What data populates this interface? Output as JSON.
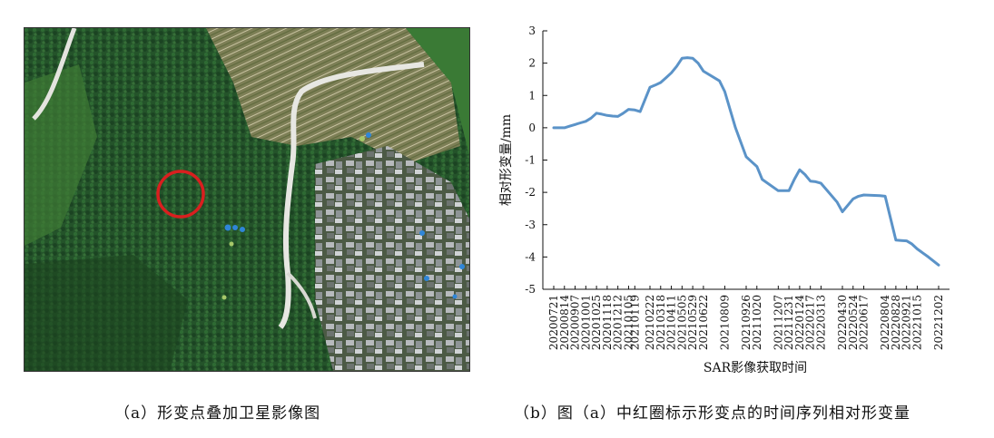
{
  "panel_a": {
    "caption": "（a）形变点叠加卫星影像图",
    "colors": {
      "forest_dark": "#1f4a22",
      "forest": "#2f6a30",
      "terraces": "#8a8a5c",
      "road": "#e7e7e2",
      "village_roof": "#b9bcc0",
      "circle": "#d91f1f",
      "point_blue": "#2f86d8",
      "point_green": "#a7c86a"
    }
  },
  "panel_b": {
    "caption": "（b）图（a）中红圈标示形变点的时间序列相对形变量"
  },
  "chart_data": {
    "type": "line",
    "title": "",
    "xlabel": "SAR影像获取时间",
    "ylabel": "相对形变量/mm",
    "ylim": [
      -5,
      3
    ],
    "yticks": [
      3,
      2,
      1,
      0,
      -1,
      -2,
      -3,
      -4,
      -5
    ],
    "grid": false,
    "line_color": "#5b93c8",
    "xtick_labels": [
      "20200721",
      "20200814",
      "20200907",
      "20201001",
      "20201025",
      "20201118",
      "20201212",
      "20210105",
      "20210119",
      "20210222",
      "20210318",
      "20210411",
      "20210505",
      "20210529",
      "20210622",
      "20210809",
      "20210926",
      "20211020",
      "20211207",
      "20211231",
      "20220124",
      "20220217",
      "20220313",
      "20220430",
      "20220524",
      "20220617",
      "20220804",
      "20220828",
      "20220921",
      "20221015",
      "20221202"
    ],
    "x": [
      "20200721",
      "20200802",
      "20200814",
      "20200826",
      "20200907",
      "20200919",
      "20201001",
      "20201013",
      "20201025",
      "20201106",
      "20201118",
      "20201130",
      "20201212",
      "20201224",
      "20210105",
      "20210119",
      "20210131",
      "20210222",
      "20210306",
      "20210318",
      "20210330",
      "20210411",
      "20210423",
      "20210505",
      "20210517",
      "20210529",
      "20210610",
      "20210622",
      "20210728",
      "20210809",
      "20210902",
      "20210926",
      "20211008",
      "20211020",
      "20211101",
      "20211207",
      "20211219",
      "20211231",
      "20220112",
      "20220124",
      "20220205",
      "20220217",
      "20220301",
      "20220313",
      "20220418",
      "20220430",
      "20220512",
      "20220524",
      "20220605",
      "20220617",
      "20220723",
      "20220804",
      "20220816",
      "20220828",
      "20220909",
      "20220921",
      "20221003",
      "20221015",
      "20221109",
      "20221202"
    ],
    "values": [
      0.0,
      0.0,
      0.0,
      0.05,
      0.1,
      0.15,
      0.2,
      0.3,
      0.45,
      0.42,
      0.38,
      0.36,
      0.35,
      0.45,
      0.57,
      0.55,
      0.5,
      1.25,
      1.32,
      1.4,
      1.55,
      1.7,
      1.9,
      2.15,
      2.17,
      2.15,
      2.0,
      1.75,
      1.45,
      1.12,
      0.0,
      -0.9,
      -1.05,
      -1.2,
      -1.6,
      -1.95,
      -1.95,
      -1.95,
      -1.6,
      -1.3,
      -1.45,
      -1.65,
      -1.67,
      -1.72,
      -2.3,
      -2.6,
      -2.4,
      -2.2,
      -2.12,
      -2.08,
      -2.1,
      -2.12,
      -2.8,
      -3.48,
      -3.49,
      -3.5,
      -3.6,
      -3.75,
      -4.0,
      -4.25
    ]
  }
}
